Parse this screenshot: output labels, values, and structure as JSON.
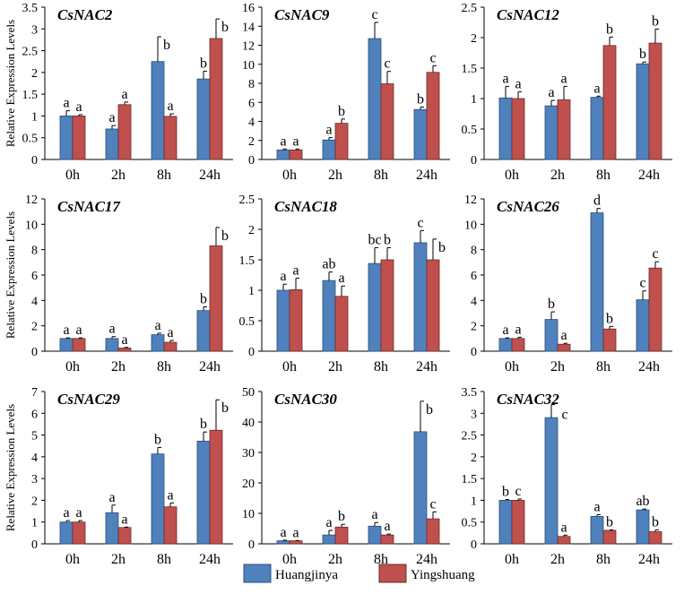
{
  "chart_data": {
    "type": "bar",
    "categories": [
      "0h",
      "2h",
      "8h",
      "24h"
    ],
    "ylabel": "Relative Expression Levels",
    "legend": {
      "position": "bottom-center",
      "entries": [
        "Huangjinya",
        "Yingshuang"
      ]
    },
    "colors": {
      "Huangjinya": "#4f81bd",
      "Yingshuang": "#c0504d"
    },
    "panels": [
      {
        "title": "CsNAC2",
        "ylim": [
          0,
          3.5
        ],
        "yticks": [
          "0",
          "0.5",
          "1",
          "1.5",
          "2",
          "2.5",
          "3",
          "3.5"
        ],
        "series": [
          {
            "name": "Huangjinya",
            "values": [
              1.0,
              0.7,
              2.25,
              1.85
            ],
            "errors": [
              0.12,
              0.08,
              0.57,
              0.18
            ],
            "letters": [
              "a",
              "a",
              "b",
              "b"
            ]
          },
          {
            "name": "Yingshuang",
            "values": [
              1.0,
              1.26,
              0.99,
              2.78
            ],
            "errors": [
              0.03,
              0.06,
              0.06,
              0.45
            ],
            "letters": [
              "a",
              "a",
              "a",
              "b"
            ]
          }
        ]
      },
      {
        "title": "CsNAC9",
        "ylim": [
          0,
          16
        ],
        "yticks": [
          "0",
          "2",
          "4",
          "6",
          "8",
          "10",
          "12",
          "14",
          "16"
        ],
        "series": [
          {
            "name": "Huangjinya",
            "values": [
              1.0,
              2.05,
              12.7,
              5.25
            ],
            "errors": [
              0.1,
              0.25,
              1.7,
              0.25
            ],
            "letters": [
              "a",
              "a",
              "c",
              "b"
            ]
          },
          {
            "name": "Yingshuang",
            "values": [
              1.0,
              3.8,
              7.95,
              9.15
            ],
            "errors": [
              0.1,
              0.45,
              1.3,
              0.7
            ],
            "letters": [
              "a",
              "b",
              "c",
              "c"
            ]
          }
        ]
      },
      {
        "title": "CsNAC12",
        "ylim": [
          0,
          2.5
        ],
        "yticks": [
          "0",
          "0.5",
          "1",
          "1.5",
          "2",
          "2.5"
        ],
        "series": [
          {
            "name": "Huangjinya",
            "values": [
              1.01,
              0.88,
              1.02,
              1.57
            ],
            "errors": [
              0.19,
              0.09,
              0.02,
              0.03
            ],
            "letters": [
              "a",
              "a",
              "a",
              "b"
            ]
          },
          {
            "name": "Yingshuang",
            "values": [
              1.0,
              0.98,
              1.87,
              1.91
            ],
            "errors": [
              0.11,
              0.22,
              0.14,
              0.23
            ],
            "letters": [
              "a",
              "a",
              "b",
              "b"
            ]
          }
        ]
      },
      {
        "title": "CsNAC17",
        "ylim": [
          0,
          12
        ],
        "yticks": [
          "0",
          "2",
          "4",
          "6",
          "8",
          "10",
          "12"
        ],
        "series": [
          {
            "name": "Huangjinya",
            "values": [
              1.0,
              1.0,
              1.3,
              3.2
            ],
            "errors": [
              0.05,
              0.15,
              0.12,
              0.3
            ],
            "letters": [
              "a",
              "a",
              "a",
              "b"
            ]
          },
          {
            "name": "Yingshuang",
            "values": [
              1.0,
              0.25,
              0.7,
              8.3
            ],
            "errors": [
              0.05,
              0.05,
              0.15,
              1.45
            ],
            "letters": [
              "a",
              "a",
              "a",
              "b"
            ]
          }
        ]
      },
      {
        "title": "CsNAC18",
        "ylim": [
          0,
          2.5
        ],
        "yticks": [
          "0",
          "0.5",
          "1",
          "1.5",
          "2",
          "2.5"
        ],
        "series": [
          {
            "name": "Huangjinya",
            "values": [
              1.0,
              1.16,
              1.44,
              1.78
            ],
            "errors": [
              0.1,
              0.14,
              0.26,
              0.2
            ],
            "letters": [
              "a",
              "ab",
              "bc",
              "c"
            ]
          },
          {
            "name": "Yingshuang",
            "values": [
              1.01,
              0.9,
              1.5,
              1.5
            ],
            "errors": [
              0.19,
              0.17,
              0.2,
              0.34
            ],
            "letters": [
              "a",
              "a",
              "b",
              "b"
            ]
          }
        ]
      },
      {
        "title": "CsNAC26",
        "ylim": [
          0,
          12
        ],
        "yticks": [
          "0",
          "2",
          "4",
          "6",
          "8",
          "10",
          "12"
        ],
        "series": [
          {
            "name": "Huangjinya",
            "values": [
              1.0,
              2.5,
              10.9,
              4.05
            ],
            "errors": [
              0.05,
              0.6,
              0.35,
              0.7
            ],
            "letters": [
              "a",
              "b",
              "d",
              "c"
            ]
          },
          {
            "name": "Yingshuang",
            "values": [
              1.0,
              0.55,
              1.75,
              6.55
            ],
            "errors": [
              0.1,
              0.07,
              0.2,
              0.5
            ],
            "letters": [
              "a",
              "a",
              "b",
              "c"
            ]
          }
        ]
      },
      {
        "title": "CsNAC29",
        "ylim": [
          0,
          7
        ],
        "yticks": [
          "0",
          "1",
          "2",
          "3",
          "4",
          "5",
          "6",
          "7"
        ],
        "series": [
          {
            "name": "Huangjinya",
            "values": [
              1.0,
              1.43,
              4.13,
              4.72
            ],
            "errors": [
              0.07,
              0.35,
              0.3,
              0.42
            ],
            "letters": [
              "a",
              "a",
              "b",
              "b"
            ]
          },
          {
            "name": "Yingshuang",
            "values": [
              1.0,
              0.75,
              1.7,
              5.22
            ],
            "errors": [
              0.07,
              0.02,
              0.18,
              1.4
            ],
            "letters": [
              "a",
              "a",
              "a",
              "b"
            ]
          }
        ]
      },
      {
        "title": "CsNAC30",
        "ylim": [
          0,
          50
        ],
        "yticks": [
          "0",
          "10",
          "20",
          "30",
          "40",
          "50"
        ],
        "series": [
          {
            "name": "Huangjinya",
            "values": [
              1.0,
              2.9,
              5.8,
              36.8
            ],
            "errors": [
              0.2,
              1.5,
              1.2,
              10
            ],
            "letters": [
              "a",
              "a",
              "a",
              "b"
            ]
          },
          {
            "name": "Yingshuang",
            "values": [
              1.0,
              5.5,
              2.9,
              8.2
            ],
            "errors": [
              0.1,
              0.9,
              0.3,
              2.3
            ],
            "letters": [
              "a",
              "b",
              "a",
              "c"
            ]
          }
        ]
      },
      {
        "title": "CsNAC32",
        "ylim": [
          0,
          3.5
        ],
        "yticks": [
          "0",
          "0.5",
          "1",
          "1.5",
          "2",
          "2.5",
          "3",
          "3.5"
        ],
        "series": [
          {
            "name": "Huangjinya",
            "values": [
              1.0,
              2.9,
              0.63,
              0.78
            ],
            "errors": [
              0.02,
              0.3,
              0.04,
              0.02
            ],
            "letters": [
              "b",
              "c",
              "a",
              "ab"
            ]
          },
          {
            "name": "Yingshuang",
            "values": [
              1.0,
              0.17,
              0.31,
              0.28
            ],
            "errors": [
              0.03,
              0.03,
              0.01,
              0.04
            ],
            "letters": [
              "c",
              "a",
              "b",
              "b"
            ]
          }
        ]
      }
    ]
  }
}
